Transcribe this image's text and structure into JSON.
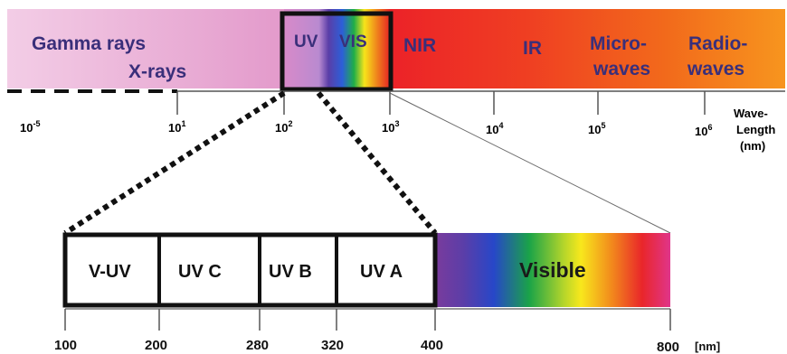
{
  "spectrum_bar": {
    "bands": {
      "gamma_rays": "Gamma rays",
      "x_rays": "X-rays",
      "uv": "UV",
      "vis": "VIS",
      "nir": "NIR",
      "ir": "IR",
      "microwaves_line1": "Micro-",
      "microwaves_line2": "waves",
      "radiowaves_line1": "Radio-",
      "radiowaves_line2": "waves"
    },
    "colors": {
      "gamma_pink_light": "#f1c7e2",
      "gamma_pink": "#e6a2cf",
      "nir_red": "#ee2a2a",
      "ir_orange": "#f26a1b",
      "radio_orange": "#f7941d",
      "label_navy": "#3a2f7a"
    }
  },
  "wavelength_axis": {
    "ticks": [
      {
        "base": "10",
        "exp": "-5"
      },
      {
        "base": "10",
        "exp": "1"
      },
      {
        "base": "10",
        "exp": "2"
      },
      {
        "base": "10",
        "exp": "3"
      },
      {
        "base": "10",
        "exp": "4"
      },
      {
        "base": "10",
        "exp": "5"
      },
      {
        "base": "10",
        "exp": "6"
      }
    ],
    "title_line1": "Wave-",
    "title_line2": "Length",
    "title_line3": "(nm)"
  },
  "zoom_scale": {
    "segments": {
      "v_uv": "V-UV",
      "uv_c": "UV C",
      "uv_b": "UV B",
      "uv_a": "UV A"
    },
    "visible_label": "Visible",
    "tick_values": [
      100,
      200,
      280,
      320,
      400,
      800
    ],
    "tick_labels": {
      "t100": "100",
      "t200": "200",
      "t280": "280",
      "t320": "320",
      "t400": "400",
      "t800": "800"
    },
    "unit": "[nm]"
  }
}
